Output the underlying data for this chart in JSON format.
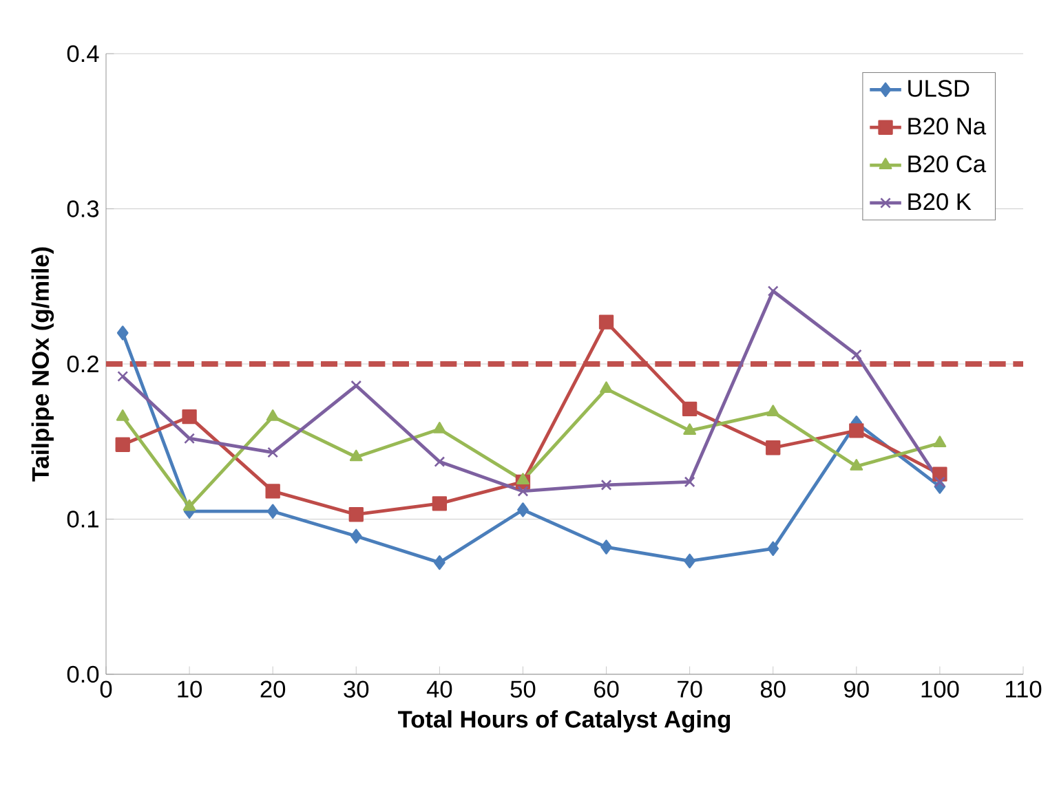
{
  "chart_data": {
    "type": "line",
    "xlabel": "Total Hours of Catalyst Aging",
    "ylabel": "Tailpipe NOx (g/mile)",
    "x": [
      2,
      10,
      20,
      30,
      40,
      50,
      60,
      70,
      80,
      90,
      100
    ],
    "series": [
      {
        "name": "ULSD",
        "color": "#4a7ebb",
        "marker": "diamond",
        "values": [
          0.22,
          0.105,
          0.105,
          0.089,
          0.072,
          0.106,
          0.082,
          0.073,
          0.081,
          0.162,
          0.121
        ]
      },
      {
        "name": "B20 Na",
        "color": "#be4b48",
        "marker": "square",
        "values": [
          0.148,
          0.166,
          0.118,
          0.103,
          0.11,
          0.124,
          0.227,
          0.171,
          0.146,
          0.157,
          0.129
        ]
      },
      {
        "name": "B20 Ca",
        "color": "#98b954",
        "marker": "triangle",
        "values": [
          0.166,
          0.108,
          0.166,
          0.14,
          0.158,
          0.125,
          0.184,
          0.157,
          0.169,
          0.134,
          0.149
        ]
      },
      {
        "name": "B20 K",
        "color": "#7d60a0",
        "marker": "cross",
        "values": [
          0.192,
          0.152,
          0.143,
          0.186,
          0.137,
          0.118,
          0.122,
          0.124,
          0.247,
          0.206,
          0.124
        ]
      }
    ],
    "ref_lines": [
      {
        "axis": "y",
        "value": 0.2,
        "color": "#c0504d",
        "line_style": "dashed"
      }
    ],
    "xlim": [
      0,
      110
    ],
    "xticks": [
      0,
      10,
      20,
      30,
      40,
      50,
      60,
      70,
      80,
      90,
      100,
      110
    ],
    "ylim": [
      0,
      0.4
    ],
    "yticks": [
      {
        "value": 0,
        "label": "0.0"
      },
      0.1,
      0.2,
      0.3,
      0.4
    ],
    "grid": "y",
    "legend": "top right",
    "line_style": "solid"
  }
}
